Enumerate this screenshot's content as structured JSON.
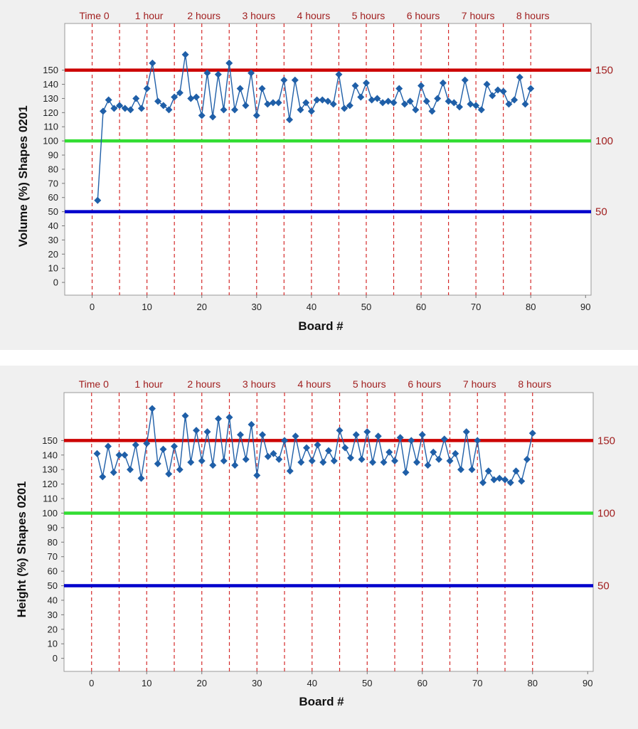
{
  "chart_data": [
    {
      "type": "line",
      "title": "",
      "xlabel": "Board #",
      "ylabel": "Volume (%) Shapes 0201",
      "xlim": [
        -5,
        91
      ],
      "ylim": [
        -9,
        183
      ],
      "xticks": [
        0,
        10,
        20,
        30,
        40,
        50,
        60,
        70,
        80,
        90
      ],
      "yticks": [
        0,
        10,
        20,
        30,
        40,
        50,
        60,
        70,
        80,
        90,
        100,
        110,
        120,
        130,
        140,
        150
      ],
      "time_markers": {
        "labels": [
          "Time 0",
          "1 hour",
          "2 hours",
          "3 hours",
          "4 hours",
          "5 hours",
          "6 hours",
          "7 hours",
          "8 hours"
        ],
        "x": [
          0,
          5,
          10,
          15,
          20,
          25,
          30,
          35,
          40,
          45,
          50,
          55,
          60,
          65,
          70,
          75,
          80
        ]
      },
      "reference_lines": [
        {
          "value": 150,
          "label": "150",
          "color": "#cc0000"
        },
        {
          "value": 100,
          "label": "100",
          "color": "#33dd33"
        },
        {
          "value": 50,
          "label": "50",
          "color": "#0000cc"
        }
      ],
      "series": [
        {
          "color": "#1f5fa8",
          "x": [
            1,
            2,
            3,
            4,
            5,
            6,
            7,
            8,
            9,
            10,
            11,
            12,
            13,
            14,
            15,
            16,
            17,
            18,
            19,
            20,
            21,
            22,
            23,
            24,
            25,
            26,
            27,
            28,
            29,
            30,
            31,
            32,
            33,
            34,
            35,
            36,
            37,
            38,
            39,
            40,
            41,
            42,
            43,
            44,
            45,
            46,
            47,
            48,
            49,
            50,
            51,
            52,
            53,
            54,
            55,
            56,
            57,
            58,
            59,
            60,
            61,
            62,
            63,
            64,
            65,
            66,
            67,
            68,
            69,
            70,
            71,
            72,
            73,
            74,
            75,
            76,
            77,
            78,
            79,
            80
          ],
          "y": [
            58,
            121,
            129,
            123,
            125,
            123,
            122,
            130,
            123,
            137,
            155,
            128,
            125,
            122,
            131,
            134,
            161,
            130,
            131,
            118,
            148,
            117,
            147,
            122,
            155,
            122,
            137,
            125,
            148,
            118,
            137,
            126,
            127,
            127,
            143,
            115,
            143,
            122,
            127,
            121,
            129,
            129,
            128,
            126,
            147,
            123,
            125,
            139,
            131,
            141,
            129,
            130,
            127,
            128,
            127,
            137,
            126,
            128,
            122,
            139,
            128,
            121,
            130,
            141,
            128,
            127,
            124,
            143,
            126,
            125,
            122,
            140,
            132,
            136,
            135,
            126,
            129,
            145,
            126,
            137
          ]
        }
      ]
    },
    {
      "type": "line",
      "title": "",
      "xlabel": "Board #",
      "ylabel": "Height (%) Shapes 0201",
      "xlim": [
        -5,
        91
      ],
      "ylim": [
        -9,
        183
      ],
      "xticks": [
        0,
        10,
        20,
        30,
        40,
        50,
        60,
        70,
        80,
        90
      ],
      "yticks": [
        0,
        10,
        20,
        30,
        40,
        50,
        60,
        70,
        80,
        90,
        100,
        110,
        120,
        130,
        140,
        150
      ],
      "time_markers": {
        "labels": [
          "Time 0",
          "1 hour",
          "2 hours",
          "3 hours",
          "4 hours",
          "5 hours",
          "6 hours",
          "7 hours",
          "8 hours"
        ],
        "x": [
          0,
          5,
          10,
          15,
          20,
          25,
          30,
          35,
          40,
          45,
          50,
          55,
          60,
          65,
          70,
          75,
          80
        ]
      },
      "reference_lines": [
        {
          "value": 150,
          "label": "150",
          "color": "#cc0000"
        },
        {
          "value": 100,
          "label": "100",
          "color": "#33dd33"
        },
        {
          "value": 50,
          "label": "50",
          "color": "#0000cc"
        }
      ],
      "series": [
        {
          "color": "#1f5fa8",
          "x": [
            1,
            2,
            3,
            4,
            5,
            6,
            7,
            8,
            9,
            10,
            11,
            12,
            13,
            14,
            15,
            16,
            17,
            18,
            19,
            20,
            21,
            22,
            23,
            24,
            25,
            26,
            27,
            28,
            29,
            30,
            31,
            32,
            33,
            34,
            35,
            36,
            37,
            38,
            39,
            40,
            41,
            42,
            43,
            44,
            45,
            46,
            47,
            48,
            49,
            50,
            51,
            52,
            53,
            54,
            55,
            56,
            57,
            58,
            59,
            60,
            61,
            62,
            63,
            64,
            65,
            66,
            67,
            68,
            69,
            70,
            71,
            72,
            73,
            74,
            75,
            76,
            77,
            78,
            79,
            80
          ],
          "y": [
            141,
            125,
            146,
            128,
            140,
            140,
            130,
            147,
            124,
            148,
            172,
            134,
            144,
            127,
            146,
            130,
            167,
            135,
            157,
            136,
            156,
            133,
            165,
            136,
            166,
            133,
            154,
            137,
            161,
            126,
            154,
            139,
            141,
            137,
            150,
            129,
            153,
            135,
            145,
            136,
            147,
            135,
            143,
            136,
            157,
            145,
            138,
            154,
            137,
            156,
            135,
            153,
            135,
            142,
            136,
            152,
            128,
            150,
            135,
            154,
            133,
            142,
            137,
            151,
            136,
            141,
            130,
            156,
            130,
            150,
            121,
            129,
            123,
            124,
            123,
            121,
            129,
            122,
            137,
            155
          ]
        }
      ]
    }
  ]
}
